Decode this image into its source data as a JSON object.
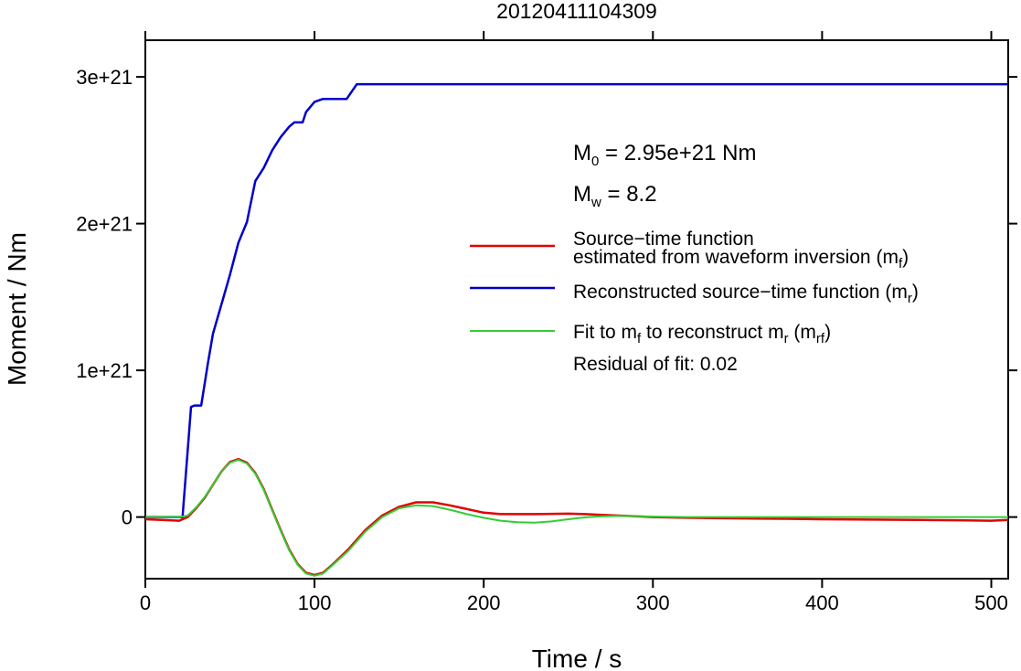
{
  "chart_data": {
    "type": "line",
    "title": "20120411104309",
    "xlabel": "Time / s",
    "ylabel": "Moment / Nm",
    "xlim": [
      0,
      510
    ],
    "ylim": [
      -4.2e+20,
      3.25e+21
    ],
    "xticks": [
      0,
      100,
      200,
      300,
      400,
      500
    ],
    "xtick_labels": [
      "0",
      "100",
      "200",
      "300",
      "400",
      "500"
    ],
    "yticks": [
      0,
      1e+21,
      2e+21,
      3e+21
    ],
    "ytick_labels": [
      "0",
      "1e+21",
      "2e+21",
      "3e+21"
    ],
    "grid": false,
    "legend_position": "right",
    "annotations": {
      "m0": {
        "prefix": "M",
        "sub": "0",
        "text": " = 2.95e+21 Nm"
      },
      "mw": {
        "prefix": "M",
        "sub": "w",
        "text": " = 8.2"
      },
      "residual": "Residual of fit: 0.02"
    },
    "legend": [
      {
        "color": "#e00000",
        "lines": [
          {
            "text": "Source−time function"
          },
          {
            "text": "estimated from waveform inversion (m",
            "sub": "f",
            "after": ")"
          }
        ]
      },
      {
        "color": "#0000cc",
        "lines": [
          {
            "text": "Reconstructed source−time function (m",
            "sub": "r",
            "after": ")"
          }
        ]
      },
      {
        "color": "#33cc33",
        "lines": [
          {
            "text": "Fit to m",
            "sub": "f",
            "text2": " to reconstruct m",
            "sub2": "r",
            "text3": " (m",
            "sub3": "rf",
            "after": ")"
          }
        ]
      }
    ],
    "series": [
      {
        "key": "reconstructed",
        "color": "#0000cc",
        "x": [
          0,
          22,
          27,
          29,
          33,
          34,
          37,
          40,
          45,
          50,
          55,
          60,
          65,
          70,
          75,
          80,
          85,
          88,
          90,
          93,
          95,
          100,
          105,
          108,
          112,
          119,
          125,
          510
        ],
        "y": [
          0,
          0,
          7.5e+20,
          7.6e+20,
          7.6e+20,
          8.3e+20,
          1.05e+21,
          1.25e+21,
          1.45e+21,
          1.65e+21,
          1.87e+21,
          2.01e+21,
          2.29e+21,
          2.38e+21,
          2.5e+21,
          2.59e+21,
          2.66e+21,
          2.69e+21,
          2.69e+21,
          2.69e+21,
          2.76e+21,
          2.83e+21,
          2.85e+21,
          2.85e+21,
          2.85e+21,
          2.85e+21,
          2.95e+21,
          2.95e+21
        ]
      },
      {
        "key": "estimated",
        "color": "#e00000",
        "x": [
          0,
          10,
          20,
          25,
          30,
          35,
          40,
          45,
          50,
          55,
          60,
          65,
          70,
          75,
          80,
          85,
          90,
          95,
          100,
          105,
          110,
          120,
          130,
          140,
          150,
          160,
          170,
          180,
          190,
          200,
          210,
          220,
          230,
          240,
          250,
          260,
          270,
          280,
          290,
          300,
          320,
          340,
          360,
          380,
          400,
          420,
          440,
          460,
          480,
          500,
          510
        ],
        "y": [
          -1.5e+19,
          -2e+19,
          -2.5e+19,
          0,
          6e+19,
          1.3e+20,
          2.2e+20,
          3.1e+20,
          3.75e+20,
          3.95e+20,
          3.7e+20,
          3e+20,
          1.9e+20,
          5e+19,
          -9e+19,
          -2.2e+20,
          -3.2e+20,
          -3.8e+20,
          -3.95e+20,
          -3.8e+20,
          -3.3e+20,
          -2.2e+20,
          -9e+19,
          1e+19,
          7e+19,
          1e+20,
          1e+20,
          8e+19,
          5.5e+19,
          3e+19,
          2e+19,
          2e+19,
          2e+19,
          2.2e+19,
          2.3e+19,
          2e+19,
          1.5e+19,
          1e+19,
          5e+18,
          0,
          -5e+18,
          -8e+18,
          -1e+19,
          -1.2e+19,
          -1.5e+19,
          -1.6e+19,
          -1.8e+19,
          -2e+19,
          -2.2e+19,
          -2.5e+19,
          -2e+19
        ]
      },
      {
        "key": "fit",
        "color": "#33cc33",
        "x": [
          0,
          10,
          20,
          25,
          30,
          35,
          40,
          45,
          50,
          55,
          60,
          65,
          70,
          75,
          80,
          85,
          90,
          95,
          100,
          105,
          110,
          120,
          130,
          140,
          150,
          160,
          170,
          180,
          190,
          200,
          210,
          220,
          230,
          240,
          250,
          260,
          270,
          280,
          290,
          300,
          320,
          340,
          360,
          380,
          400,
          420,
          440,
          460,
          480,
          500,
          510
        ],
        "y": [
          0,
          0,
          0,
          1e+19,
          6.5e+19,
          1.35e+20,
          2.2e+20,
          3.1e+20,
          3.7e+20,
          3.9e+20,
          3.65e+20,
          2.95e+20,
          1.85e+20,
          4.5e+19,
          -9.5e+19,
          -2.25e+20,
          -3.25e+20,
          -3.85e+20,
          -4e+20,
          -3.85e+20,
          -3.35e+20,
          -2.3e+20,
          -1e+20,
          0,
          6e+19,
          8e+19,
          7.5e+19,
          5e+19,
          2e+19,
          -5e+18,
          -2.5e+19,
          -3.5e+19,
          -3.8e+19,
          -3e+19,
          -1.5e+19,
          -2e+18,
          5e+18,
          8e+18,
          6e+18,
          3e+18,
          0,
          0,
          0,
          0,
          0,
          0,
          0,
          0,
          0,
          0,
          0
        ]
      }
    ]
  }
}
